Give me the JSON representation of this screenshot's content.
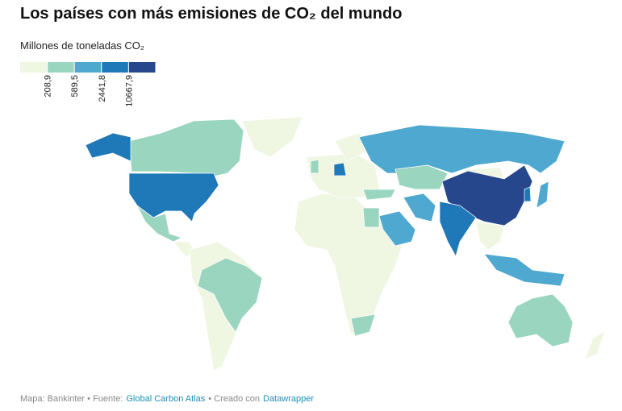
{
  "header": {
    "title": "Los países con más emisiones de CO₂ del mundo",
    "subtitle": "Millones de toneladas CO₂"
  },
  "legend": {
    "colors": [
      "#eff7e3",
      "#9ad5bf",
      "#4ea8cf",
      "#1f78b8",
      "#27478c"
    ],
    "thresholds": [
      {
        "value": 208.9,
        "label": "208,9"
      },
      {
        "value": 589.5,
        "label": "589,5"
      },
      {
        "value": 2441.8,
        "label": "2441,8"
      },
      {
        "value": 10667.9,
        "label": "10667,9"
      }
    ]
  },
  "footer": {
    "credit": "Mapa: Bankinter • Fuente:",
    "source": "Global Carbon Atlas",
    "made": "• Creado con",
    "tool": "Datawrapper"
  }
}
